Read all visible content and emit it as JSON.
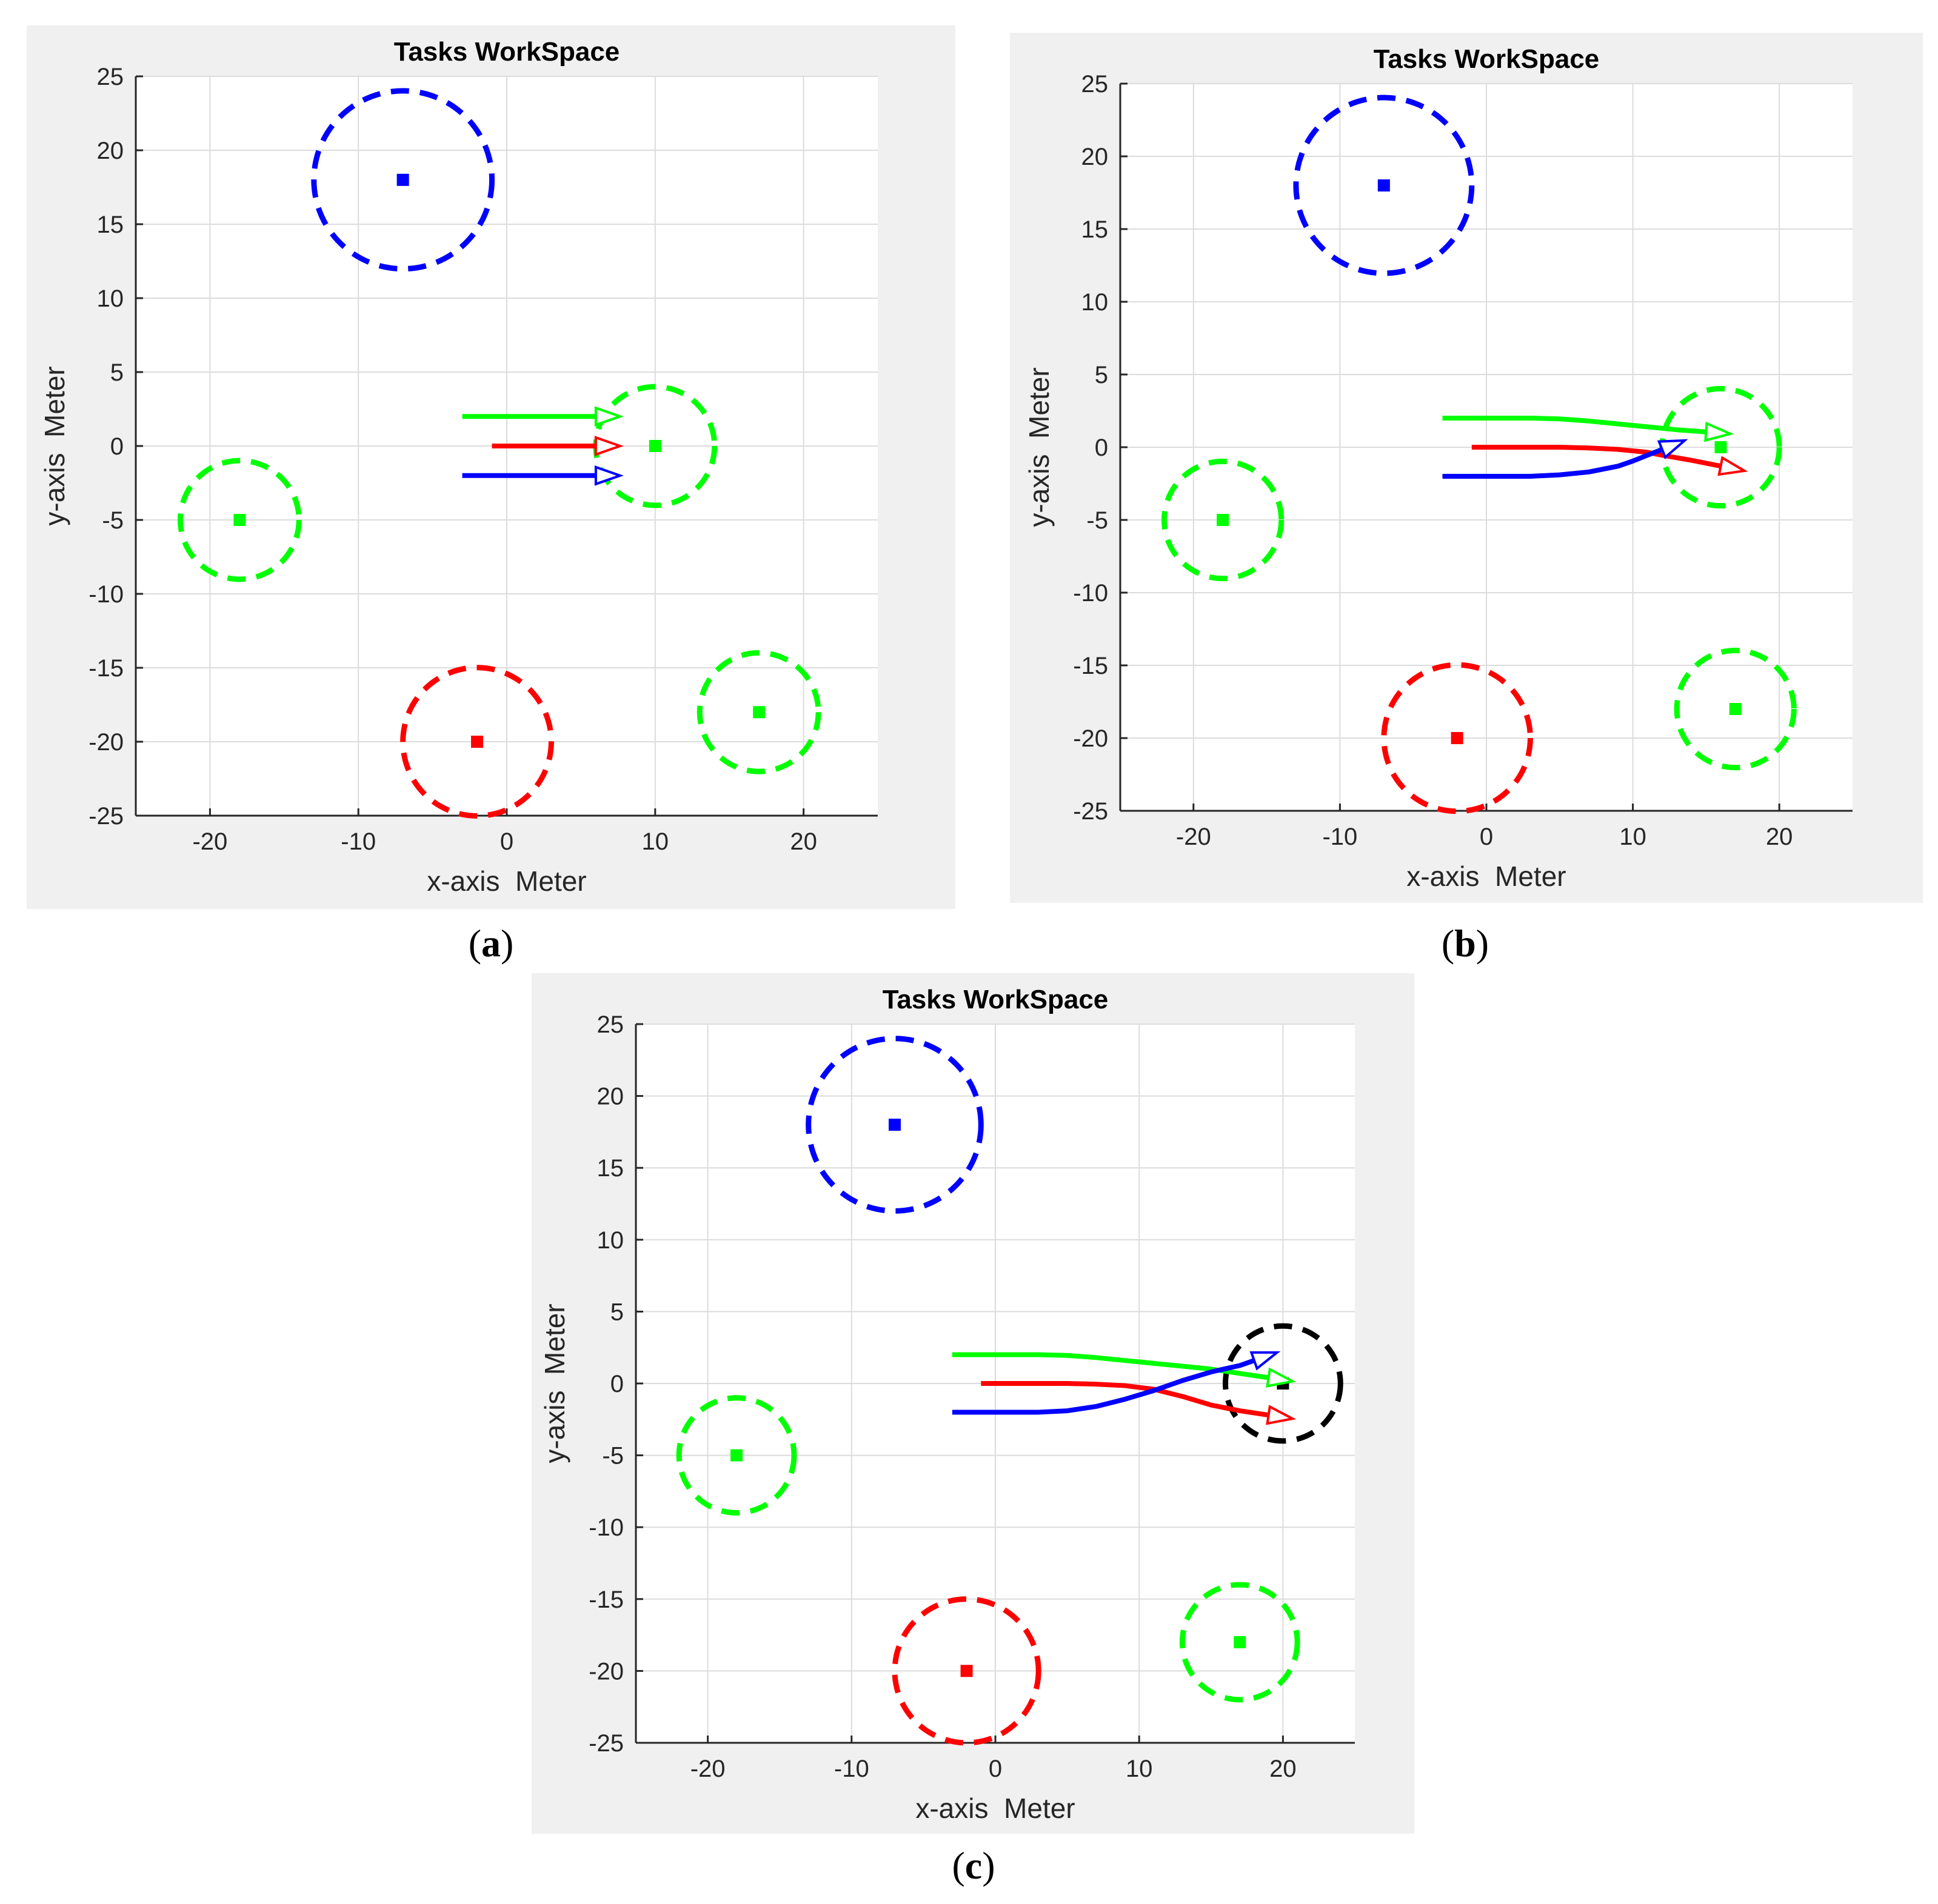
{
  "colors": {
    "blue": "#0000ff",
    "green": "#00ff00",
    "red": "#ff0000",
    "black": "#000000",
    "grid": "#dcdcdc",
    "panel_bg": "#f0f0f0"
  },
  "captions": [
    {
      "open": "(",
      "letter": "a",
      "close": ")"
    },
    {
      "open": "(",
      "letter": "b",
      "close": ")"
    },
    {
      "open": "(",
      "letter": "c",
      "close": ")"
    }
  ],
  "chart_data": [
    {
      "type": "scatter",
      "title": "Tasks WorkSpace",
      "xlabel": "x-axis  Meter",
      "ylabel": "y-axis  Meter",
      "xlim": [
        -25,
        25
      ],
      "ylim": [
        -25,
        25
      ],
      "xticks": [
        -20,
        -10,
        0,
        10,
        20
      ],
      "yticks": [
        25,
        20,
        15,
        10,
        5,
        0,
        -5,
        -10,
        -15,
        -20,
        -25
      ],
      "grid": true,
      "tasks": [
        {
          "name": "blue-task",
          "color": "blue",
          "x": -7,
          "y": 18,
          "radius": 6
        },
        {
          "name": "green-task",
          "color": "green",
          "x": 10,
          "y": 0,
          "radius": 4
        },
        {
          "name": "green-task",
          "color": "green",
          "x": -18,
          "y": -5,
          "radius": 4
        },
        {
          "name": "red-task",
          "color": "red",
          "x": -2,
          "y": -20,
          "radius": 5
        },
        {
          "name": "green-task",
          "color": "green",
          "x": 17,
          "y": -18,
          "radius": 4
        }
      ],
      "agents": [
        {
          "name": "green-agent",
          "color": "green",
          "x": [
            -3,
            6
          ],
          "y": [
            2,
            2
          ]
        },
        {
          "name": "red-agent",
          "color": "red",
          "x": [
            -1,
            6
          ],
          "y": [
            0,
            0
          ]
        },
        {
          "name": "blue-agent",
          "color": "blue",
          "x": [
            -3,
            6
          ],
          "y": [
            -2,
            -2
          ]
        }
      ]
    },
    {
      "type": "scatter",
      "title": "Tasks WorkSpace",
      "xlabel": "x-axis  Meter",
      "ylabel": "y-axis  Meter",
      "xlim": [
        -25,
        25
      ],
      "ylim": [
        -25,
        25
      ],
      "xticks": [
        -20,
        -10,
        0,
        10,
        20
      ],
      "yticks": [
        25,
        20,
        15,
        10,
        5,
        0,
        -5,
        -10,
        -15,
        -20,
        -25
      ],
      "grid": true,
      "tasks": [
        {
          "name": "blue-task",
          "color": "blue",
          "x": -7,
          "y": 18,
          "radius": 6
        },
        {
          "name": "green-task",
          "color": "green",
          "x": 16,
          "y": 0,
          "radius": 4
        },
        {
          "name": "green-task",
          "color": "green",
          "x": -18,
          "y": -5,
          "radius": 4
        },
        {
          "name": "red-task",
          "color": "red",
          "x": -2,
          "y": -20,
          "radius": 5
        },
        {
          "name": "green-task",
          "color": "green",
          "x": 17,
          "y": -18,
          "radius": 4
        }
      ],
      "agents": [
        {
          "name": "green-agent",
          "color": "green",
          "x": [
            -3,
            0,
            3,
            5,
            7,
            9,
            11,
            13,
            15
          ],
          "y": [
            2,
            2,
            2,
            1.95,
            1.8,
            1.6,
            1.4,
            1.2,
            1.05
          ]
        },
        {
          "name": "red-agent",
          "color": "red",
          "x": [
            -1,
            2,
            5,
            7,
            9,
            11,
            12,
            14,
            16
          ],
          "y": [
            0,
            0,
            0,
            -0.05,
            -0.15,
            -0.35,
            -0.55,
            -0.9,
            -1.3
          ]
        },
        {
          "name": "blue-agent",
          "color": "blue",
          "x": [
            -3,
            0,
            3,
            5,
            7,
            9,
            10,
            11,
            12
          ],
          "y": [
            -2,
            -2,
            -2,
            -1.9,
            -1.7,
            -1.3,
            -0.95,
            -0.55,
            -0.15
          ]
        }
      ]
    },
    {
      "type": "scatter",
      "title": "Tasks WorkSpace",
      "xlabel": "x-axis  Meter",
      "ylabel": "y-axis  Meter",
      "xlim": [
        -25,
        25
      ],
      "ylim": [
        -25,
        25
      ],
      "xticks": [
        -20,
        -10,
        0,
        10,
        20
      ],
      "yticks": [
        25,
        20,
        15,
        10,
        5,
        0,
        -5,
        -10,
        -15,
        -20,
        -25
      ],
      "grid": true,
      "tasks": [
        {
          "name": "blue-task",
          "color": "blue",
          "x": -7,
          "y": 18,
          "radius": 6
        },
        {
          "name": "black-task",
          "color": "black",
          "x": 20,
          "y": 0,
          "radius": 4
        },
        {
          "name": "green-task",
          "color": "green",
          "x": -18,
          "y": -5,
          "radius": 4
        },
        {
          "name": "red-task",
          "color": "red",
          "x": -2,
          "y": -20,
          "radius": 5
        },
        {
          "name": "green-task",
          "color": "green",
          "x": 17,
          "y": -18,
          "radius": 4
        }
      ],
      "agents": [
        {
          "name": "green-agent",
          "color": "green",
          "x": [
            -3,
            0,
            3,
            5,
            7,
            9,
            11,
            13,
            15,
            17,
            19
          ],
          "y": [
            2,
            2,
            2,
            1.95,
            1.8,
            1.6,
            1.4,
            1.2,
            1.0,
            0.7,
            0.4
          ]
        },
        {
          "name": "red-agent",
          "color": "red",
          "x": [
            -1,
            2,
            5,
            7,
            9,
            11,
            13,
            15,
            17,
            19
          ],
          "y": [
            0,
            0,
            0,
            -0.05,
            -0.15,
            -0.4,
            -0.9,
            -1.5,
            -1.9,
            -2.2
          ]
        },
        {
          "name": "blue-agent",
          "color": "blue",
          "x": [
            -3,
            0,
            3,
            5,
            7,
            9,
            11,
            13,
            15,
            17,
            18
          ],
          "y": [
            -2,
            -2,
            -2,
            -1.9,
            -1.6,
            -1.1,
            -0.5,
            0.2,
            0.8,
            1.25,
            1.6
          ]
        }
      ]
    }
  ]
}
